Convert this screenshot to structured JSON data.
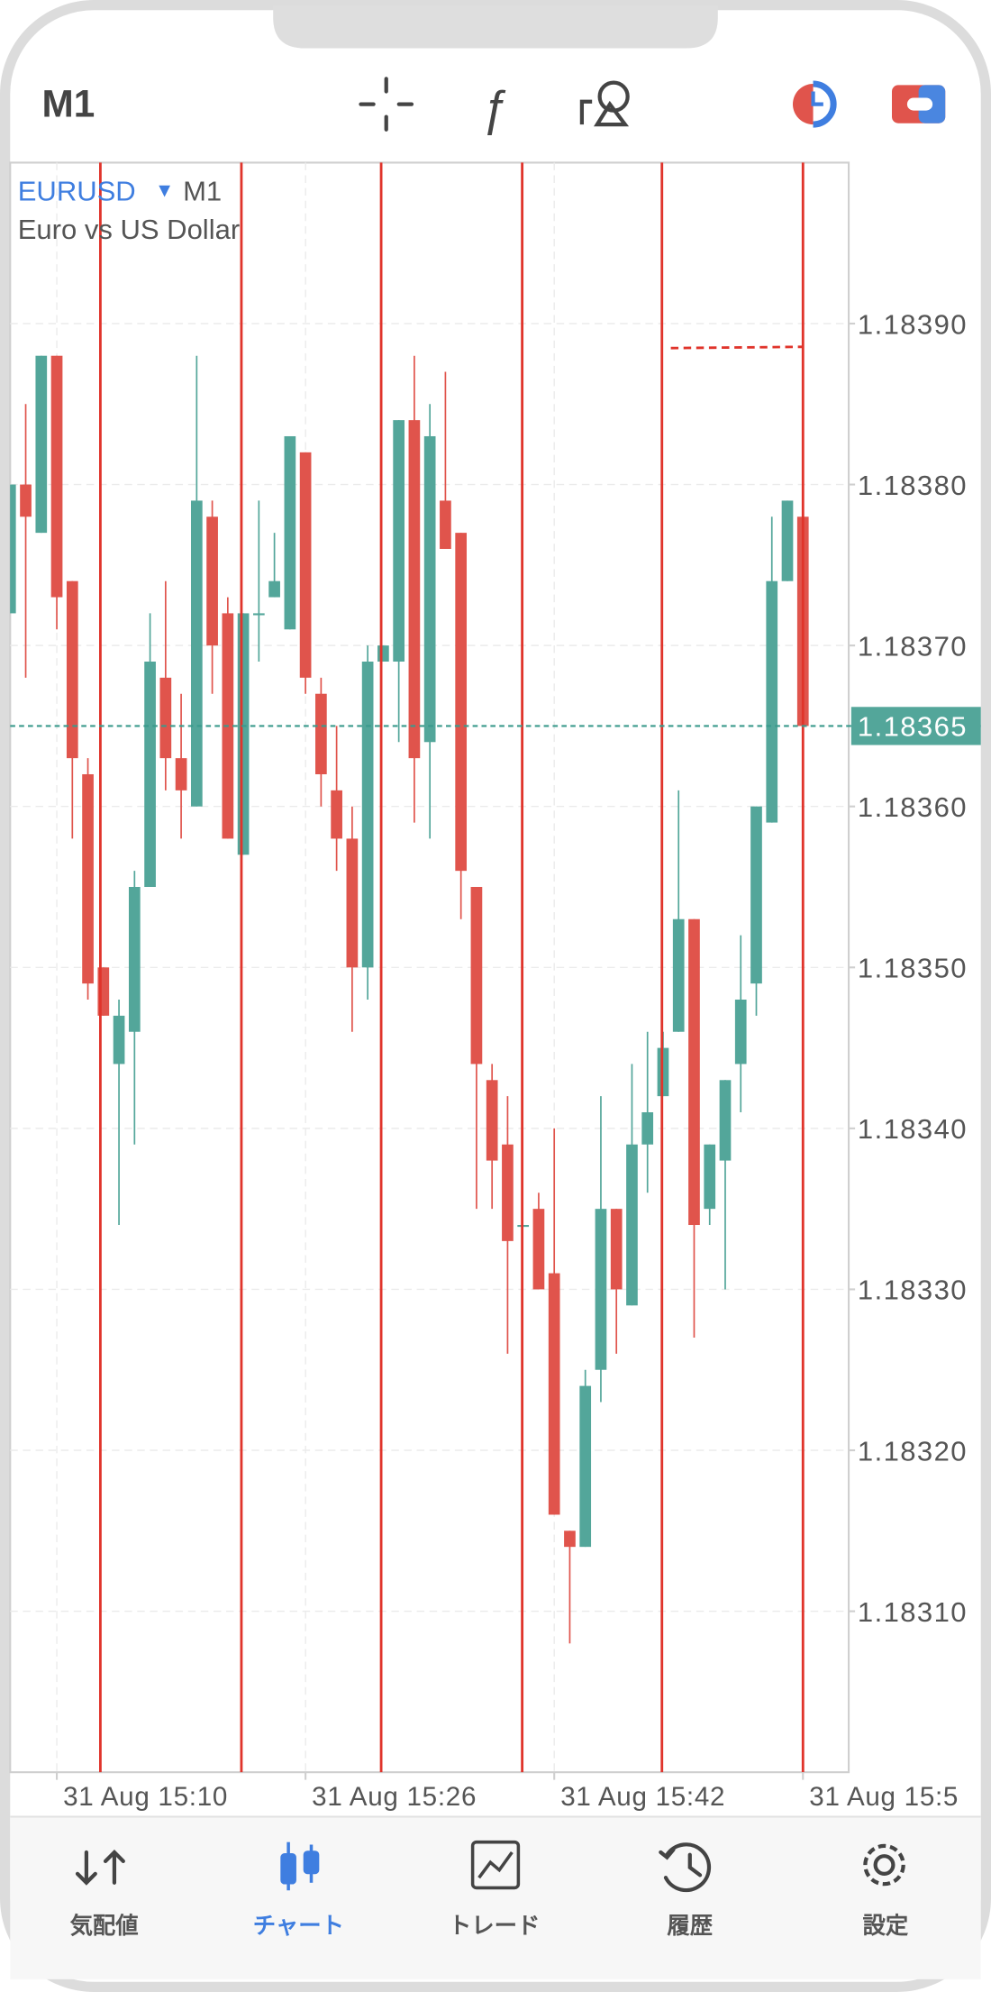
{
  "header": {
    "timeframe": "M1"
  },
  "chart_header": {
    "symbol": "EURUSD",
    "timeframe": "M1",
    "description": "Euro vs US Dollar"
  },
  "chart_data": {
    "type": "candlestick",
    "up_color": "#53a69a",
    "down_color": "#e0544c",
    "categories": [
      null,
      null,
      null,
      "31 Aug 15:10",
      null,
      null,
      null,
      null,
      null,
      null,
      null,
      null,
      null,
      null,
      null,
      null,
      null,
      null,
      null,
      "31 Aug 15:26",
      null,
      null,
      null,
      null,
      null,
      null,
      null,
      null,
      null,
      null,
      null,
      null,
      null,
      null,
      null,
      "31 Aug 15:42",
      null,
      null,
      null,
      null,
      null,
      null,
      null,
      null,
      null,
      null,
      null,
      null,
      null,
      null,
      null,
      "31 Aug 15:5"
    ],
    "open": [
      1.18372,
      1.1838,
      1.18377,
      1.18388,
      1.18374,
      1.18362,
      1.1835,
      1.18344,
      1.18346,
      1.18355,
      1.18368,
      1.18363,
      1.1836,
      1.18378,
      1.18372,
      1.18357,
      1.18372,
      1.18373,
      1.18371,
      1.18382,
      1.18367,
      1.18361,
      1.18358,
      1.1835,
      1.18369,
      1.18369,
      1.18384,
      1.18364,
      1.18379,
      1.18377,
      1.18355,
      1.18343,
      1.18339,
      1.18334,
      1.18335,
      1.18331,
      1.18315,
      1.18314,
      1.18325,
      1.18335,
      1.18329,
      1.18339,
      1.18342,
      1.18346,
      1.18353,
      1.18335,
      1.18338,
      1.18344,
      1.18349,
      1.18359,
      1.18374,
      1.18378
    ],
    "high": [
      1.1838,
      1.18385,
      1.18388,
      1.18388,
      1.18374,
      1.18363,
      1.1835,
      1.18348,
      1.18356,
      1.18372,
      1.18374,
      1.18367,
      1.18388,
      1.18379,
      1.18373,
      1.18372,
      1.18379,
      1.18377,
      1.18383,
      1.18382,
      1.18368,
      1.18365,
      1.1836,
      1.1837,
      1.1837,
      1.18384,
      1.18388,
      1.18385,
      1.18387,
      1.18377,
      1.18355,
      1.18344,
      1.18342,
      1.18334,
      1.18336,
      1.1834,
      1.18315,
      1.18325,
      1.18342,
      1.18335,
      1.18344,
      1.18346,
      1.18346,
      1.18361,
      1.18353,
      1.18339,
      1.18343,
      1.18352,
      1.1836,
      1.18378,
      1.18379,
      1.18378
    ],
    "low": [
      1.18372,
      1.18368,
      1.18377,
      1.18371,
      1.18358,
      1.18348,
      1.18347,
      1.18334,
      1.18339,
      1.18355,
      1.18361,
      1.18358,
      1.1836,
      1.18367,
      1.18358,
      1.18357,
      1.18369,
      1.18373,
      1.18371,
      1.18367,
      1.1836,
      1.18356,
      1.18346,
      1.18348,
      1.18369,
      1.18364,
      1.18359,
      1.18358,
      1.18376,
      1.18353,
      1.18335,
      1.18335,
      1.18326,
      1.18334,
      1.1833,
      1.18316,
      1.18308,
      1.18314,
      1.18323,
      1.18326,
      1.18329,
      1.18336,
      1.18342,
      1.18346,
      1.18327,
      1.18334,
      1.1833,
      1.18341,
      1.18347,
      1.18359,
      1.18374,
      1.18365
    ],
    "close": [
      1.1838,
      1.18378,
      1.18388,
      1.18373,
      1.18363,
      1.18349,
      1.18347,
      1.18347,
      1.18355,
      1.18369,
      1.18363,
      1.18361,
      1.18379,
      1.1837,
      1.18358,
      1.18372,
      1.18372,
      1.18374,
      1.18383,
      1.18368,
      1.18362,
      1.18358,
      1.1835,
      1.18369,
      1.1837,
      1.18384,
      1.18363,
      1.18383,
      1.18376,
      1.18356,
      1.18344,
      1.18338,
      1.18333,
      1.18334,
      1.1833,
      1.18316,
      1.18314,
      1.18324,
      1.18335,
      1.1833,
      1.18339,
      1.18341,
      1.18345,
      1.18353,
      1.18334,
      1.18339,
      1.18343,
      1.18348,
      1.1836,
      1.18374,
      1.18379,
      1.18365
    ],
    "ylim": [
      1.183,
      1.184
    ],
    "yticks": [
      {
        "value": 1.1839,
        "label": "1.18390"
      },
      {
        "value": 1.1838,
        "label": "1.18380"
      },
      {
        "value": 1.1837,
        "label": "1.18370"
      },
      {
        "value": 1.1836,
        "label": "1.18360"
      },
      {
        "value": 1.1835,
        "label": "1.18350"
      },
      {
        "value": 1.1834,
        "label": "1.18340"
      },
      {
        "value": 1.1833,
        "label": "1.18330"
      },
      {
        "value": 1.1832,
        "label": "1.18320"
      },
      {
        "value": 1.1831,
        "label": "1.18310"
      }
    ],
    "current_price": 1.18365,
    "grid": true
  },
  "tabs": [
    "気配値",
    "チャート",
    "トレード",
    "履歴",
    "設定"
  ]
}
